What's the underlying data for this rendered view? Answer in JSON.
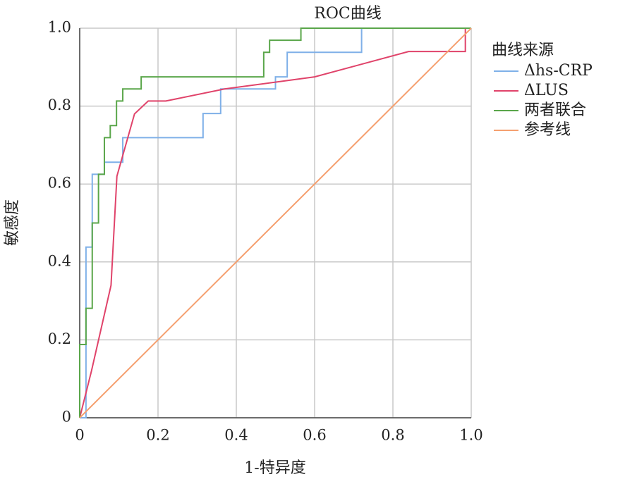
{
  "chart_data": {
    "type": "line",
    "title": "ROC曲线",
    "x_label": "1-特异度",
    "y_label": "敏感度",
    "legend_title": "曲线来源",
    "legend": "right",
    "grid": true,
    "xlim": [
      0,
      1
    ],
    "ylim": [
      0,
      1
    ],
    "xticks": [
      0,
      0.2,
      0.4,
      0.6,
      0.8,
      {
        "value": 1,
        "label": "1.0"
      }
    ],
    "yticks": [
      0,
      0.2,
      0.4,
      0.6,
      0.8,
      {
        "value": 1,
        "label": "1.0"
      }
    ],
    "series": [
      {
        "name": "Δhs-CRP",
        "color": "#7fb0e8",
        "x": [
          0,
          0.016,
          0.016,
          0.032,
          0.032,
          0.063,
          0.063,
          0.11,
          0.11,
          0.315,
          0.315,
          0.36,
          0.36,
          0.5,
          0.5,
          0.53,
          0.53,
          0.72,
          0.72,
          1
        ],
        "values": [
          0,
          0,
          0.438,
          0.438,
          0.625,
          0.625,
          0.656,
          0.656,
          0.719,
          0.719,
          0.781,
          0.781,
          0.844,
          0.844,
          0.875,
          0.875,
          0.938,
          0.938,
          1,
          1
        ]
      },
      {
        "name": "ΔLUS",
        "color": "#e0436a",
        "x": [
          0,
          0.03,
          0.08,
          0.095,
          0.14,
          0.175,
          0.22,
          0.37,
          0.6,
          0.84,
          0.985,
          0.985,
          1
        ],
        "values": [
          0,
          0.12,
          0.34,
          0.62,
          0.78,
          0.813,
          0.813,
          0.844,
          0.875,
          0.94,
          0.94,
          1,
          1
        ]
      },
      {
        "name": "两者联合",
        "color": "#5aa64a",
        "x": [
          0,
          0,
          0.016,
          0.016,
          0.032,
          0.032,
          0.048,
          0.048,
          0.063,
          0.063,
          0.078,
          0.078,
          0.094,
          0.094,
          0.11,
          0.11,
          0.157,
          0.157,
          0.47,
          0.47,
          0.485,
          0.485,
          0.565,
          0.565,
          1
        ],
        "values": [
          0,
          0.188,
          0.188,
          0.281,
          0.281,
          0.5,
          0.5,
          0.625,
          0.625,
          0.719,
          0.719,
          0.75,
          0.75,
          0.813,
          0.813,
          0.844,
          0.844,
          0.875,
          0.875,
          0.938,
          0.938,
          0.969,
          0.969,
          1,
          1
        ]
      },
      {
        "name": "参考线",
        "color": "#f5a070",
        "x": [
          0,
          1
        ],
        "values": [
          0,
          1
        ]
      }
    ]
  }
}
